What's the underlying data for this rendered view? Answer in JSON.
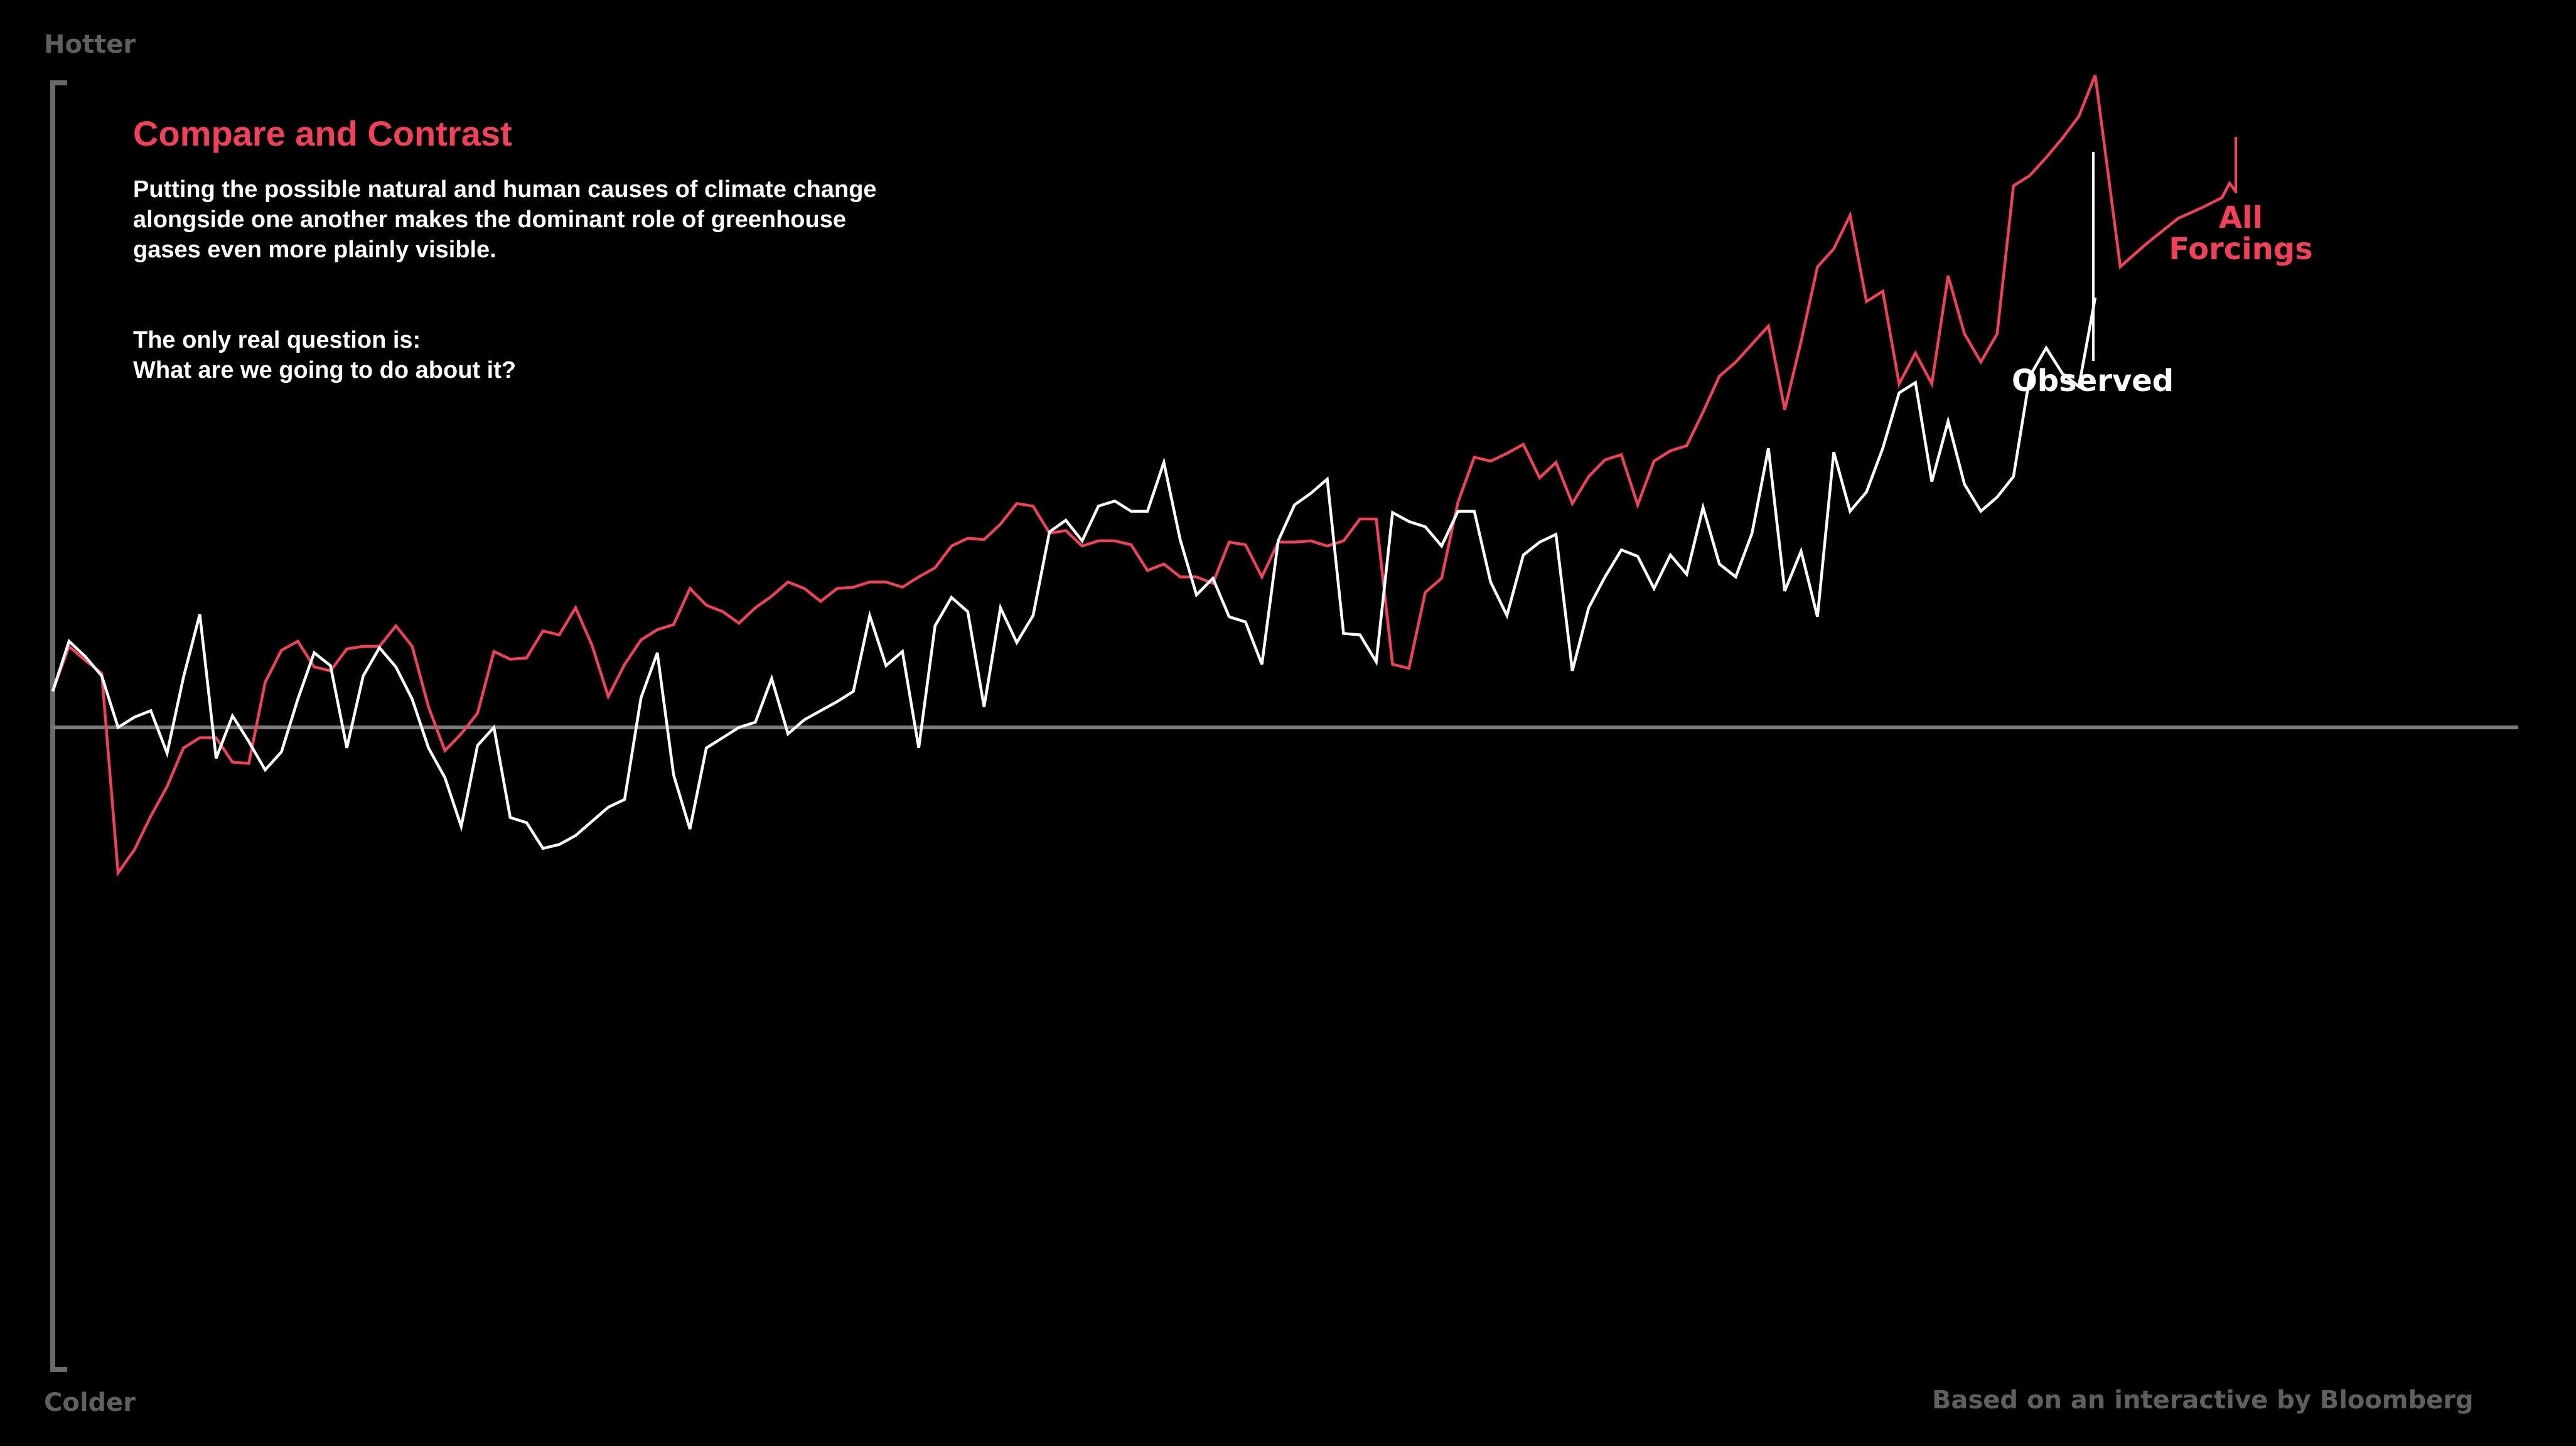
{
  "axis": {
    "top_label": "Hotter",
    "bottom_label": "Colder"
  },
  "headline": {
    "title": "Compare and Contrast",
    "paragraph_1": "Putting the possible natural and human causes of climate change alongside one another makes the dominant role of greenhouse gases even more plainly visible.",
    "paragraph_2_line_1": "The only real question is:",
    "paragraph_2_line_2": "What are we going to do about it?"
  },
  "credit": "Based on an interactive by Bloomberg",
  "chart_data": {
    "type": "line",
    "x": [
      1880,
      1881,
      1882,
      1883,
      1884,
      1885,
      1886,
      1887,
      1888,
      1889,
      1890,
      1891,
      1892,
      1893,
      1894,
      1895,
      1896,
      1897,
      1898,
      1899,
      1900,
      1901,
      1902,
      1903,
      1904,
      1905,
      1906,
      1907,
      1908,
      1909,
      1910,
      1911,
      1912,
      1913,
      1914,
      1915,
      1916,
      1917,
      1918,
      1919,
      1920,
      1921,
      1922,
      1923,
      1924,
      1925,
      1926,
      1927,
      1928,
      1929,
      1930,
      1931,
      1932,
      1933,
      1934,
      1935,
      1936,
      1937,
      1938,
      1939,
      1940,
      1941,
      1942,
      1943,
      1944,
      1945,
      1946,
      1947,
      1948,
      1949,
      1950,
      1951,
      1952,
      1953,
      1954,
      1955,
      1956,
      1957,
      1958,
      1959,
      1960,
      1961,
      1962,
      1963,
      1964,
      1965,
      1966,
      1967,
      1968,
      1969,
      1970,
      1971,
      1972,
      1973,
      1974,
      1975,
      1976,
      1977,
      1978,
      1979,
      1980,
      1981,
      1982,
      1983,
      1984,
      1985,
      1986,
      1987,
      1988,
      1989,
      1990,
      1991,
      1992,
      1993,
      1994,
      1995,
      1996,
      1997,
      1998,
      1999,
      2000,
      2001,
      2002,
      2003,
      2004,
      2005
    ],
    "xlim": [
      1880,
      2005
    ],
    "ylim": [
      -0.5,
      0.5
    ],
    "grid": false,
    "series": [
      {
        "name": "Observed",
        "color": "#ffffff",
        "values": [
          0.027,
          0.066,
          0.054,
          0.039,
          -0.001,
          0.007,
          0.012,
          -0.021,
          0.038,
          0.087,
          -0.025,
          0.008,
          -0.012,
          -0.034,
          -0.02,
          0.021,
          0.057,
          0.047,
          -0.017,
          0.039,
          0.061,
          0.046,
          0.021,
          -0.017,
          -0.04,
          -0.078,
          -0.015,
          -0.001,
          -0.071,
          -0.075,
          -0.095,
          -0.092,
          -0.085,
          -0.074,
          -0.063,
          -0.057,
          0.022,
          0.057,
          -0.038,
          -0.08,
          -0.017,
          -0.009,
          -0.001,
          0.003,
          0.037,
          -0.006,
          0.005,
          0.012,
          0.019,
          0.027,
          0.086,
          0.047,
          0.058,
          -0.017,
          0.078,
          0.1,
          0.089,
          0.015,
          0.092,
          0.065,
          0.086,
          0.151,
          0.16,
          0.144,
          0.171,
          0.175,
          0.167,
          0.167,
          0.205,
          0.145,
          0.102,
          0.115,
          0.085,
          0.081,
          0.048,
          0.144,
          0.172,
          0.181,
          0.192,
          0.072,
          0.071,
          0.05,
          0.166,
          0.159,
          0.155,
          0.14,
          0.167,
          0.167,
          0.112,
          0.086,
          0.133,
          0.143,
          0.149,
          0.043,
          0.092,
          0.116,
          0.137,
          0.132,
          0.107,
          0.133,
          0.118,
          0.17,
          0.126,
          0.116,
          0.15,
          0.216,
          0.105,
          0.136,
          0.085,
          0.213,
          0.167,
          0.182,
          0.216,
          0.259,
          0.267,
          0.19,
          0.237,
          0.188,
          0.167,
          0.178,
          0.194,
          0.272,
          0.294,
          0.274,
          0.264,
          0.333
        ]
      },
      {
        "name": "All Forcings",
        "color": "#f0405a",
        "values": [
          0.027,
          0.062,
          0.051,
          0.041,
          -0.114,
          -0.096,
          -0.07,
          -0.047,
          -0.017,
          -0.009,
          -0.009,
          -0.028,
          -0.029,
          0.034,
          0.059,
          0.066,
          0.046,
          0.043,
          0.06,
          0.062,
          0.062,
          0.078,
          0.062,
          0.015,
          -0.019,
          -0.006,
          0.01,
          0.058,
          0.052,
          0.053,
          0.074,
          0.071,
          0.092,
          0.063,
          0.023,
          0.048,
          0.067,
          0.075,
          0.079,
          0.107,
          0.094,
          0.089,
          0.08,
          0.092,
          0.101,
          0.112,
          0.107,
          0.097,
          0.107,
          0.108,
          0.112,
          0.112,
          0.108,
          0.116,
          0.123,
          0.14,
          0.146,
          0.145,
          0.157,
          0.173,
          0.171,
          0.15,
          0.152,
          0.14,
          0.144,
          0.144,
          0.141,
          0.121,
          0.126,
          0.116,
          0.116,
          0.111,
          0.143,
          0.141,
          0.116,
          0.143,
          0.143,
          0.144,
          0.14,
          0.144,
          0.161,
          0.161,
          0.048,
          0.045,
          0.104,
          0.115,
          0.174,
          0.209,
          0.206,
          0.212,
          0.219,
          0.193,
          0.205,
          0.173,
          0.194,
          0.207,
          0.211,
          0.172,
          0.206,
          0.214,
          0.218,
          0.244,
          0.272,
          0.283,
          0.297,
          0.311,
          0.246,
          0.299,
          0.357,
          0.371,
          0.397,
          0.33,
          0.338,
          0.266,
          0.29,
          0.266,
          0.35,
          0.305,
          0.283,
          0.305,
          0.42,
          0.428,
          0.442,
          0.457,
          0.474,
          0.506
        ]
      }
    ]
  }
}
